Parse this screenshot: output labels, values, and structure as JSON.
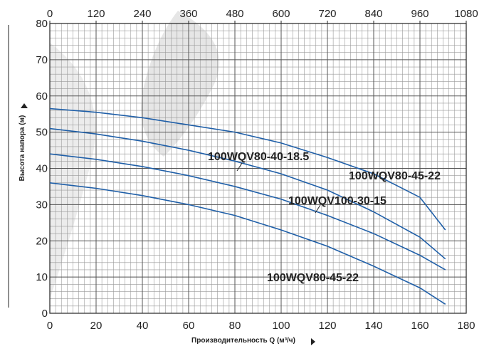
{
  "chart_data": {
    "type": "line",
    "xlabel": "Производительность Q (м³/ч)",
    "ylabel": "Высота напора (м)",
    "xlim": [
      0,
      180
    ],
    "xticks": [
      0,
      20,
      40,
      60,
      80,
      100,
      120,
      140,
      160,
      180
    ],
    "x2lim": [
      0,
      1080
    ],
    "x2ticks": [
      0,
      120,
      240,
      360,
      480,
      600,
      720,
      840,
      960,
      1080
    ],
    "ylim": [
      0,
      80
    ],
    "yticks": [
      0,
      10,
      20,
      30,
      40,
      50,
      60,
      70,
      80
    ],
    "grid": true,
    "minor_xstep": 2.5,
    "minor_ystep": 2,
    "x": [
      0,
      20,
      40,
      60,
      80,
      100,
      120,
      140,
      160,
      171
    ],
    "series": [
      {
        "name": "100WQV80-45-22",
        "color": "#1f5fa8",
        "values": [
          56.5,
          55.5,
          54,
          52,
          50,
          47,
          43,
          38.5,
          32,
          23
        ]
      },
      {
        "name": "100WQV80-40-18.5",
        "color": "#1f5fa8",
        "values": [
          51,
          49.5,
          47.5,
          45,
          42,
          38.5,
          34,
          28,
          21,
          15
        ]
      },
      {
        "name": "100WQV100-30-15",
        "color": "#1f5fa8",
        "values": [
          44,
          42.5,
          40.5,
          38,
          35,
          31.5,
          27,
          22,
          16,
          12
        ]
      },
      {
        "name": "100WQV80-45-22",
        "color": "#1f5fa8",
        "values": [
          36,
          34.5,
          32.5,
          30,
          27,
          23,
          18.5,
          13,
          7,
          2.5
        ]
      }
    ]
  }
}
